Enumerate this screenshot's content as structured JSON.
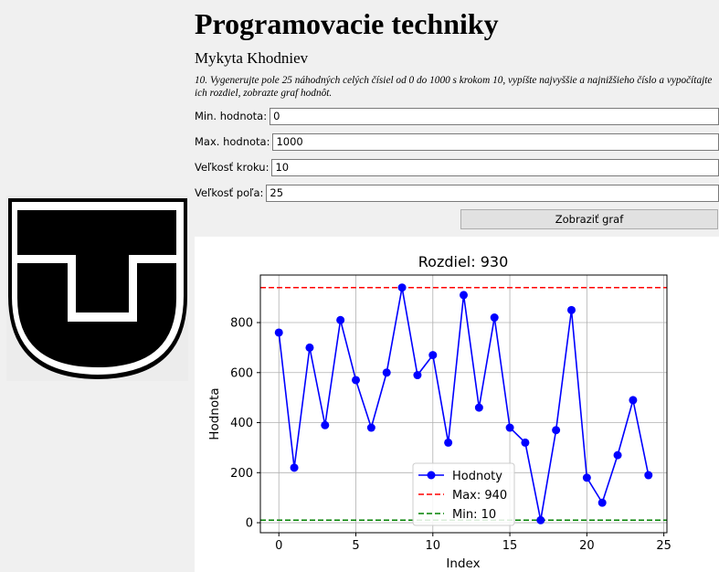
{
  "app": {
    "title": "Programovacie techniky",
    "author": "Mykyta Khodniev",
    "task": "10. Vygenerujte pole 25 náhodných celých čísiel od 0 do 1000 s krokom 10, vypíšte najvyššie a najnižšieho číslo a vypočítajte ich rozdiel, zobrazte graf hodnôt."
  },
  "form": {
    "min_label": "Min. hodnota:",
    "min_value": "0",
    "max_label": "Max. hodnota:",
    "max_value": "1000",
    "step_label": "Veľkosť kroku:",
    "step_value": "10",
    "size_label": "Veľkosť poľa:",
    "size_value": "25",
    "button_label": "Zobraziť graf"
  },
  "chart_data": {
    "type": "line",
    "title": "Rozdiel: 930",
    "xlabel": "Index",
    "ylabel": "Hodnota",
    "x": [
      0,
      1,
      2,
      3,
      4,
      5,
      6,
      7,
      8,
      9,
      10,
      11,
      12,
      13,
      14,
      15,
      16,
      17,
      18,
      19,
      20,
      21,
      22,
      23,
      24
    ],
    "series": [
      {
        "name": "Hodnoty",
        "color": "#0000ff",
        "marker": "circle",
        "values": [
          760,
          220,
          700,
          390,
          810,
          570,
          380,
          600,
          940,
          590,
          670,
          320,
          910,
          460,
          820,
          380,
          320,
          10,
          370,
          850,
          180,
          80,
          270,
          490,
          190
        ]
      }
    ],
    "hlines": [
      {
        "name": "Max: 940",
        "value": 940,
        "color": "#ff0000",
        "style": "dashed"
      },
      {
        "name": "Min: 10",
        "value": 10,
        "color": "#008000",
        "style": "dashed"
      }
    ],
    "xlim": [
      -1.2,
      25.2
    ],
    "ylim": [
      -40,
      990
    ],
    "xticks": [
      0,
      5,
      10,
      15,
      20,
      25
    ],
    "yticks": [
      0,
      200,
      400,
      600,
      800
    ],
    "grid": true,
    "legend": "lower-center"
  }
}
